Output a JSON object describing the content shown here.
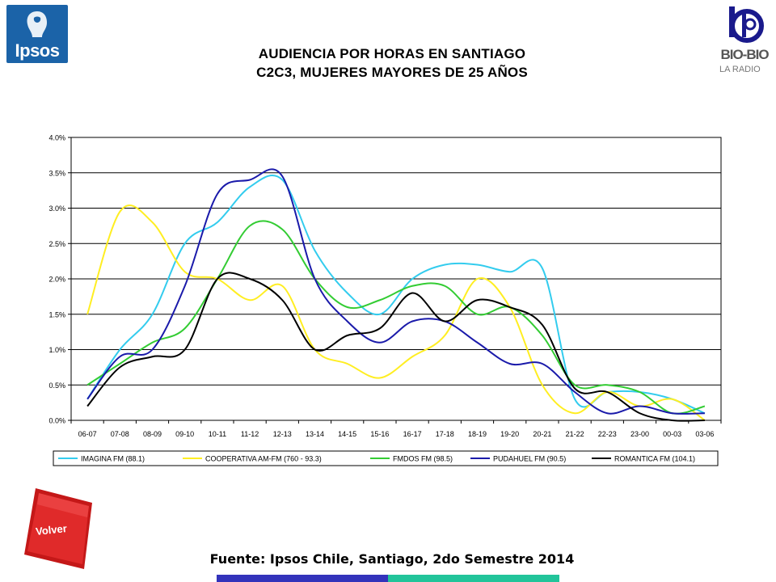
{
  "logos": {
    "left_text": "Ipsos",
    "right_text": "BIO-BIO",
    "right_sub": "LA RADIO"
  },
  "title_line1": "AUDIENCIA POR HORAS EN SANTIAGO",
  "title_line2": "C2C3, MUJERES MAYORES DE 25 AÑOS",
  "source": "Fuente: Ipsos Chile, Santiago, 2do Semestre 2014",
  "back_button": {
    "label": "Volver"
  },
  "colors": {
    "imagina": "#33ccee",
    "cooperativa": "#ffee22",
    "fmdos": "#33cc33",
    "pudahuel": "#1a1aaa",
    "romantica": "#000000",
    "volver": "#e02020",
    "ipsos": "#1b63a8"
  },
  "chart_data": {
    "type": "line",
    "title": "AUDIENCIA POR HORAS EN SANTIAGO C2C3, MUJERES MAYORES DE 25 AÑOS",
    "xlabel": "",
    "ylabel": "",
    "ylim": [
      0,
      4.0
    ],
    "y_ticks": [
      "0.0%",
      "0.5%",
      "1.0%",
      "1.5%",
      "2.0%",
      "2.5%",
      "3.0%",
      "3.5%",
      "4.0%"
    ],
    "grid": "horizontal",
    "legend_position": "bottom",
    "categories": [
      "06-07",
      "07-08",
      "08-09",
      "09-10",
      "10-11",
      "11-12",
      "12-13",
      "13-14",
      "14-15",
      "15-16",
      "16-17",
      "17-18",
      "18-19",
      "19-20",
      "20-21",
      "21-22",
      "22-23",
      "23-00",
      "00-03",
      "03-06"
    ],
    "series": [
      {
        "name": "IMAGINA FM (88.1)",
        "color": "#33ccee",
        "values": [
          0.3,
          1.0,
          1.5,
          2.5,
          2.8,
          3.3,
          3.4,
          2.4,
          1.8,
          1.5,
          2.0,
          2.2,
          2.2,
          2.1,
          2.15,
          0.3,
          0.4,
          0.4,
          0.3,
          0.1
        ]
      },
      {
        "name": "COOPERATIVA AM-FM (760 - 93.3)",
        "color": "#ffee22",
        "values": [
          1.5,
          2.95,
          2.8,
          2.1,
          2.0,
          1.7,
          1.9,
          1.0,
          0.8,
          0.6,
          0.9,
          1.2,
          2.0,
          1.6,
          0.5,
          0.1,
          0.4,
          0.2,
          0.3,
          0.0
        ]
      },
      {
        "name": "FMDOS FM (98.5)",
        "color": "#33cc33",
        "values": [
          0.5,
          0.8,
          1.1,
          1.3,
          2.0,
          2.75,
          2.7,
          2.0,
          1.6,
          1.7,
          1.9,
          1.9,
          1.5,
          1.6,
          1.2,
          0.5,
          0.5,
          0.4,
          0.1,
          0.2
        ]
      },
      {
        "name": "PUDAHUEL FM (90.5)",
        "color": "#1a1aaa",
        "values": [
          0.3,
          0.9,
          1.0,
          1.9,
          3.2,
          3.4,
          3.45,
          2.0,
          1.4,
          1.1,
          1.4,
          1.4,
          1.1,
          0.8,
          0.8,
          0.4,
          0.1,
          0.2,
          0.1,
          0.1
        ]
      },
      {
        "name": "ROMANTICA FM (104.1)",
        "color": "#000000",
        "values": [
          0.2,
          0.75,
          0.9,
          1.0,
          2.0,
          2.0,
          1.7,
          1.0,
          1.2,
          1.3,
          1.8,
          1.4,
          1.7,
          1.6,
          1.35,
          0.45,
          0.4,
          0.1,
          0.0,
          0.0
        ]
      }
    ]
  }
}
